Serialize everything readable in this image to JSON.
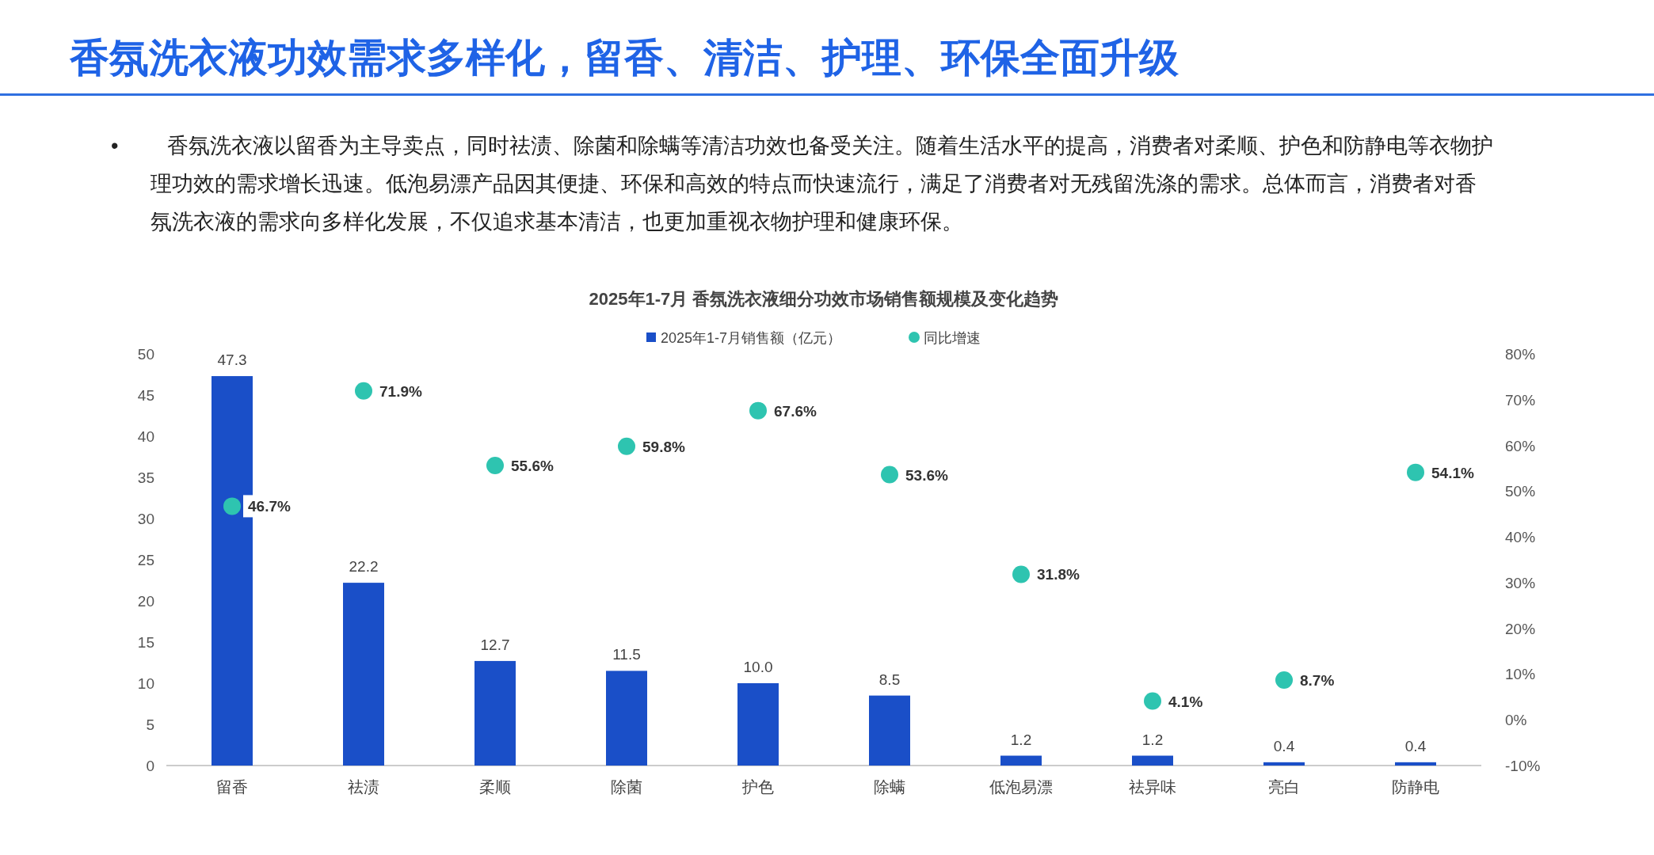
{
  "chart_data": {
    "type": "bar",
    "title": "2025年1-7月 香氛洗衣液细分功效市场销售额规模及变化趋势",
    "annotations": [
      "香氛洗衣液功效需求多样化，留香、清洁、护理、环保全面升级",
      "• 香氛洗衣液以留香为主导卖点，同时祛渍、除菌和除螨等清洁功效也备受关注。随着生活水平的提高，消费者对柔顺、护色和防静电等衣物护理功效的需求增长迅速。低泡易漂产品因其便捷、环保和高效的特点而快速流行，满足了消费者对无残留洗涤的需求。总体而言，消费者对香氛洗衣液的需求向多样化发展，不仅追求基本清洁，也更加重视衣物护理和健康环保。"
    ],
    "categories": [
      "留香",
      "祛渍",
      "柔顺",
      "除菌",
      "护色",
      "除螨",
      "低泡易漂",
      "祛异味",
      "亮白",
      "防静电"
    ],
    "series": [
      {
        "name": "2025年1-7月销售额（亿元）",
        "color": "#1a4fc8",
        "values": [
          47.3,
          22.2,
          12.7,
          11.5,
          10.0,
          8.5,
          1.2,
          1.2,
          0.4,
          0.4
        ],
        "value_labels": [
          "47.3",
          "22.2",
          "12.7",
          "11.5",
          "10.0",
          "8.5",
          "1.2",
          "1.2",
          "0.4",
          "0.4"
        ]
      },
      {
        "name": "同比增速",
        "type": "scatter",
        "axis": "y2",
        "marker": "circle",
        "color": "#2ec4b0",
        "values": [
          46.7,
          71.9,
          55.6,
          59.8,
          67.6,
          53.6,
          31.8,
          4.1,
          8.7,
          54.1
        ],
        "value_labels": [
          "46.7%",
          "71.9%",
          "55.6%",
          "59.8%",
          "67.6%",
          "53.6%",
          "31.8%",
          "4.1%",
          "8.7%",
          "54.1%"
        ]
      }
    ],
    "ylim": [
      0,
      50
    ],
    "yticks": [
      0,
      5,
      10,
      15,
      20,
      25,
      30,
      35,
      40,
      45,
      50
    ],
    "y2lim": [
      -10,
      80
    ],
    "y2ticks": [
      {
        "value": -10,
        "label": "-10%"
      },
      {
        "value": 0,
        "label": "0%"
      },
      {
        "value": 10,
        "label": "10%"
      },
      {
        "value": 20,
        "label": "20%"
      },
      {
        "value": 30,
        "label": "30%"
      },
      {
        "value": 40,
        "label": "40%"
      },
      {
        "value": 50,
        "label": "50%"
      },
      {
        "value": 60,
        "label": "60%"
      },
      {
        "value": 70,
        "label": "70%"
      },
      {
        "value": 80,
        "label": "80%"
      }
    ],
    "legend": "top",
    "grid": false
  }
}
